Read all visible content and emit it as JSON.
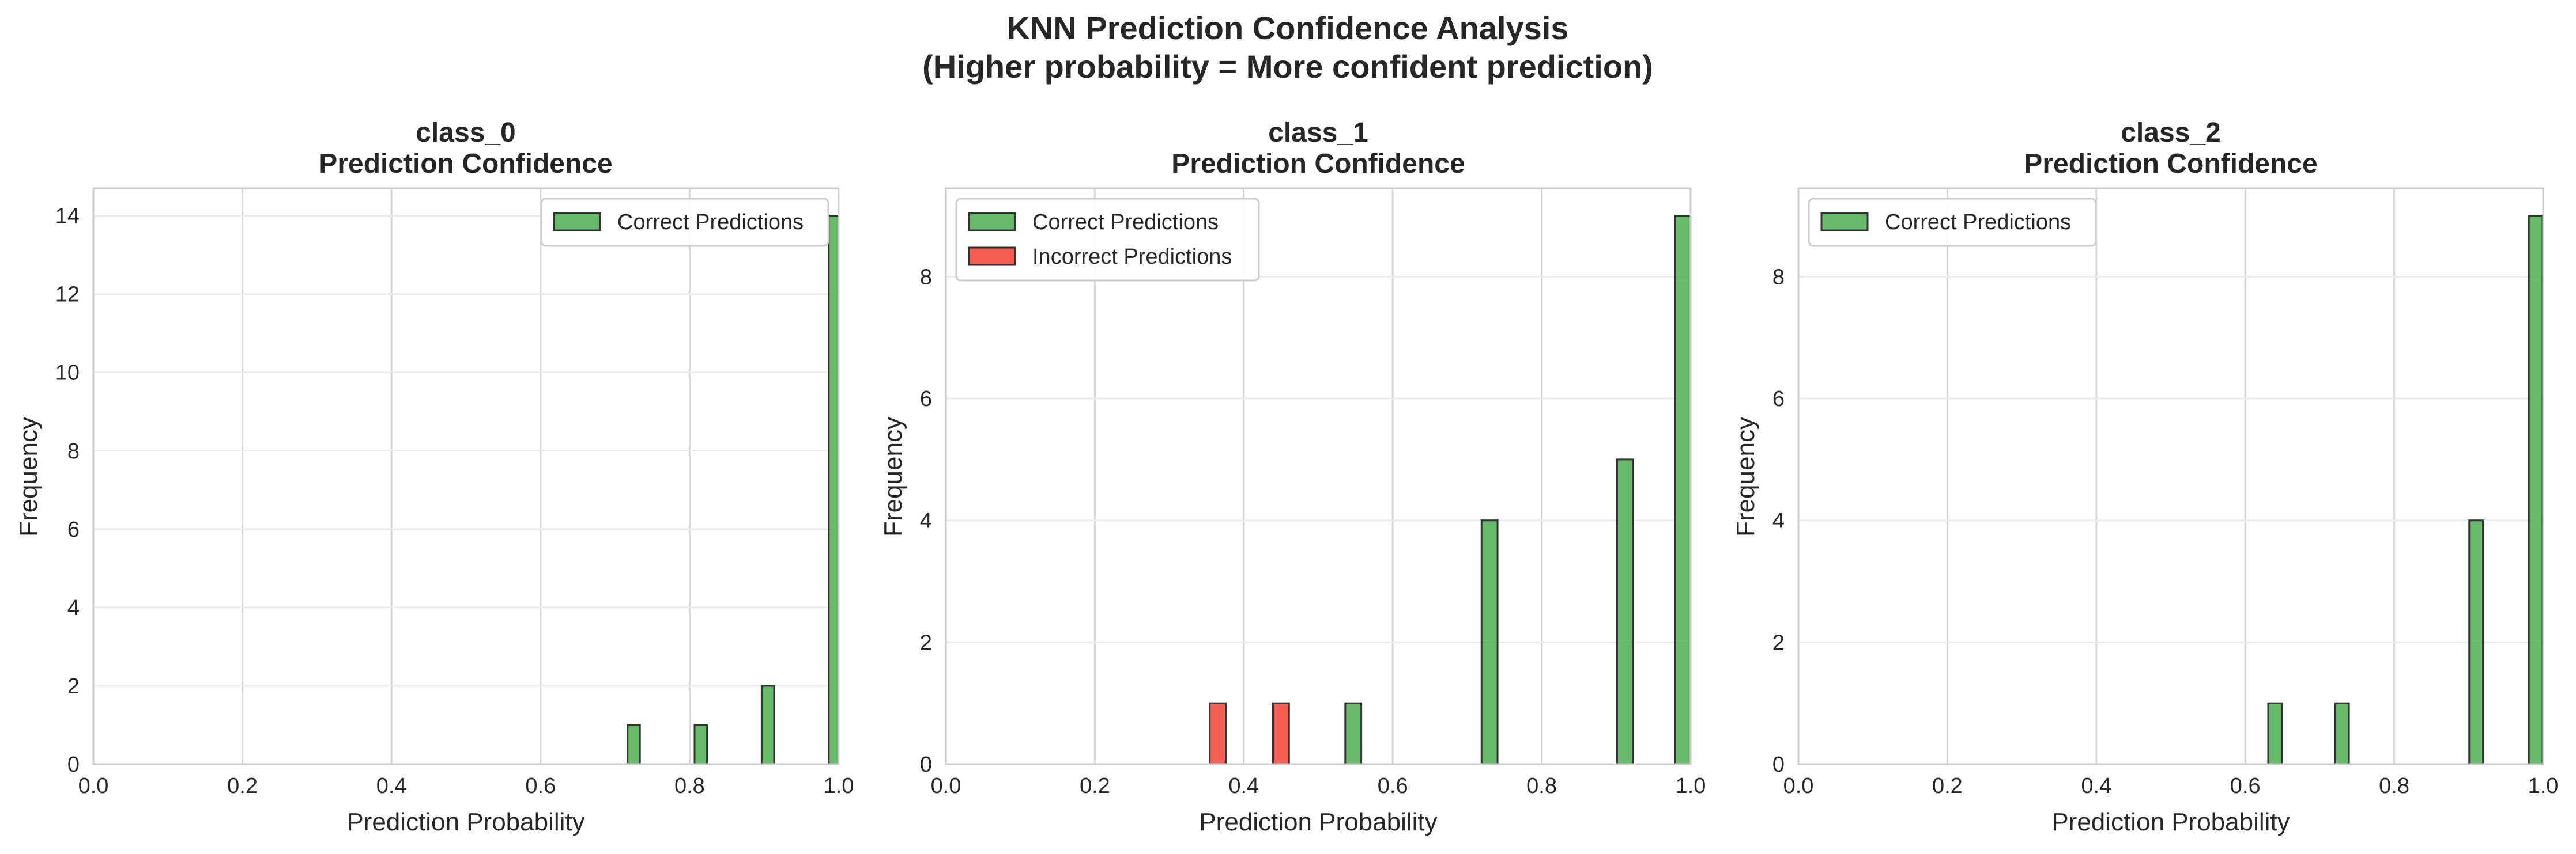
{
  "figure": {
    "title_line1": "KNN Prediction Confidence Analysis",
    "title_line2": "(Higher probability = More confident prediction)"
  },
  "colors": {
    "correct": "#4caf50",
    "incorrect": "#f44336",
    "edge": "#333333",
    "grid": "#d6d6d6",
    "spine": "#cccccc"
  },
  "chart_data": [
    {
      "type": "bar",
      "panel": "class_0",
      "title_line1": "class_0",
      "title_line2": "Prediction Confidence",
      "xlabel": "Prediction Probability",
      "ylabel": "Frequency",
      "xlim": [
        0.0,
        1.0
      ],
      "ylim": [
        0,
        14.7
      ],
      "xticks": [
        "0.0",
        "0.2",
        "0.4",
        "0.6",
        "0.8",
        "1.0"
      ],
      "yticks": [
        0,
        2,
        4,
        6,
        8,
        10,
        12,
        14
      ],
      "bin_width": 0.0167,
      "grid": true,
      "legend_position": "upper right",
      "series": [
        {
          "name": "Correct Predictions",
          "color": "#4caf50",
          "bins": [
            {
              "x": 0.725,
              "count": 1
            },
            {
              "x": 0.815,
              "count": 1
            },
            {
              "x": 0.905,
              "count": 2
            },
            {
              "x": 0.995,
              "count": 14
            }
          ]
        }
      ]
    },
    {
      "type": "bar",
      "panel": "class_1",
      "title_line1": "class_1",
      "title_line2": "Prediction Confidence",
      "xlabel": "Prediction Probability",
      "ylabel": "Frequency",
      "xlim": [
        0.0,
        1.0
      ],
      "ylim": [
        0,
        9.45
      ],
      "xticks": [
        "0.0",
        "0.2",
        "0.4",
        "0.6",
        "0.8",
        "1.0"
      ],
      "yticks": [
        0,
        2,
        4,
        6,
        8
      ],
      "bin_width": 0.0215,
      "grid": true,
      "legend_position": "upper left",
      "series": [
        {
          "name": "Correct Predictions",
          "color": "#4caf50",
          "bins": [
            {
              "x": 0.547,
              "count": 1
            },
            {
              "x": 0.73,
              "count": 4
            },
            {
              "x": 0.912,
              "count": 5
            },
            {
              "x": 0.99,
              "count": 9
            }
          ]
        },
        {
          "name": "Incorrect Predictions",
          "color": "#f44336",
          "bins": [
            {
              "x": 0.365,
              "count": 1
            },
            {
              "x": 0.45,
              "count": 1
            }
          ]
        }
      ]
    },
    {
      "type": "bar",
      "panel": "class_2",
      "title_line1": "class_2",
      "title_line2": "Prediction Confidence",
      "xlabel": "Prediction Probability",
      "ylabel": "Frequency",
      "xlim": [
        0.0,
        1.0
      ],
      "ylim": [
        0,
        9.45
      ],
      "xticks": [
        "0.0",
        "0.2",
        "0.4",
        "0.6",
        "0.8",
        "1.0"
      ],
      "yticks": [
        0,
        2,
        4,
        6,
        8
      ],
      "bin_width": 0.0185,
      "grid": true,
      "legend_position": "upper left",
      "series": [
        {
          "name": "Correct Predictions",
          "color": "#4caf50",
          "bins": [
            {
              "x": 0.64,
              "count": 1
            },
            {
              "x": 0.73,
              "count": 1
            },
            {
              "x": 0.91,
              "count": 4
            },
            {
              "x": 0.99,
              "count": 9
            }
          ]
        }
      ]
    }
  ]
}
